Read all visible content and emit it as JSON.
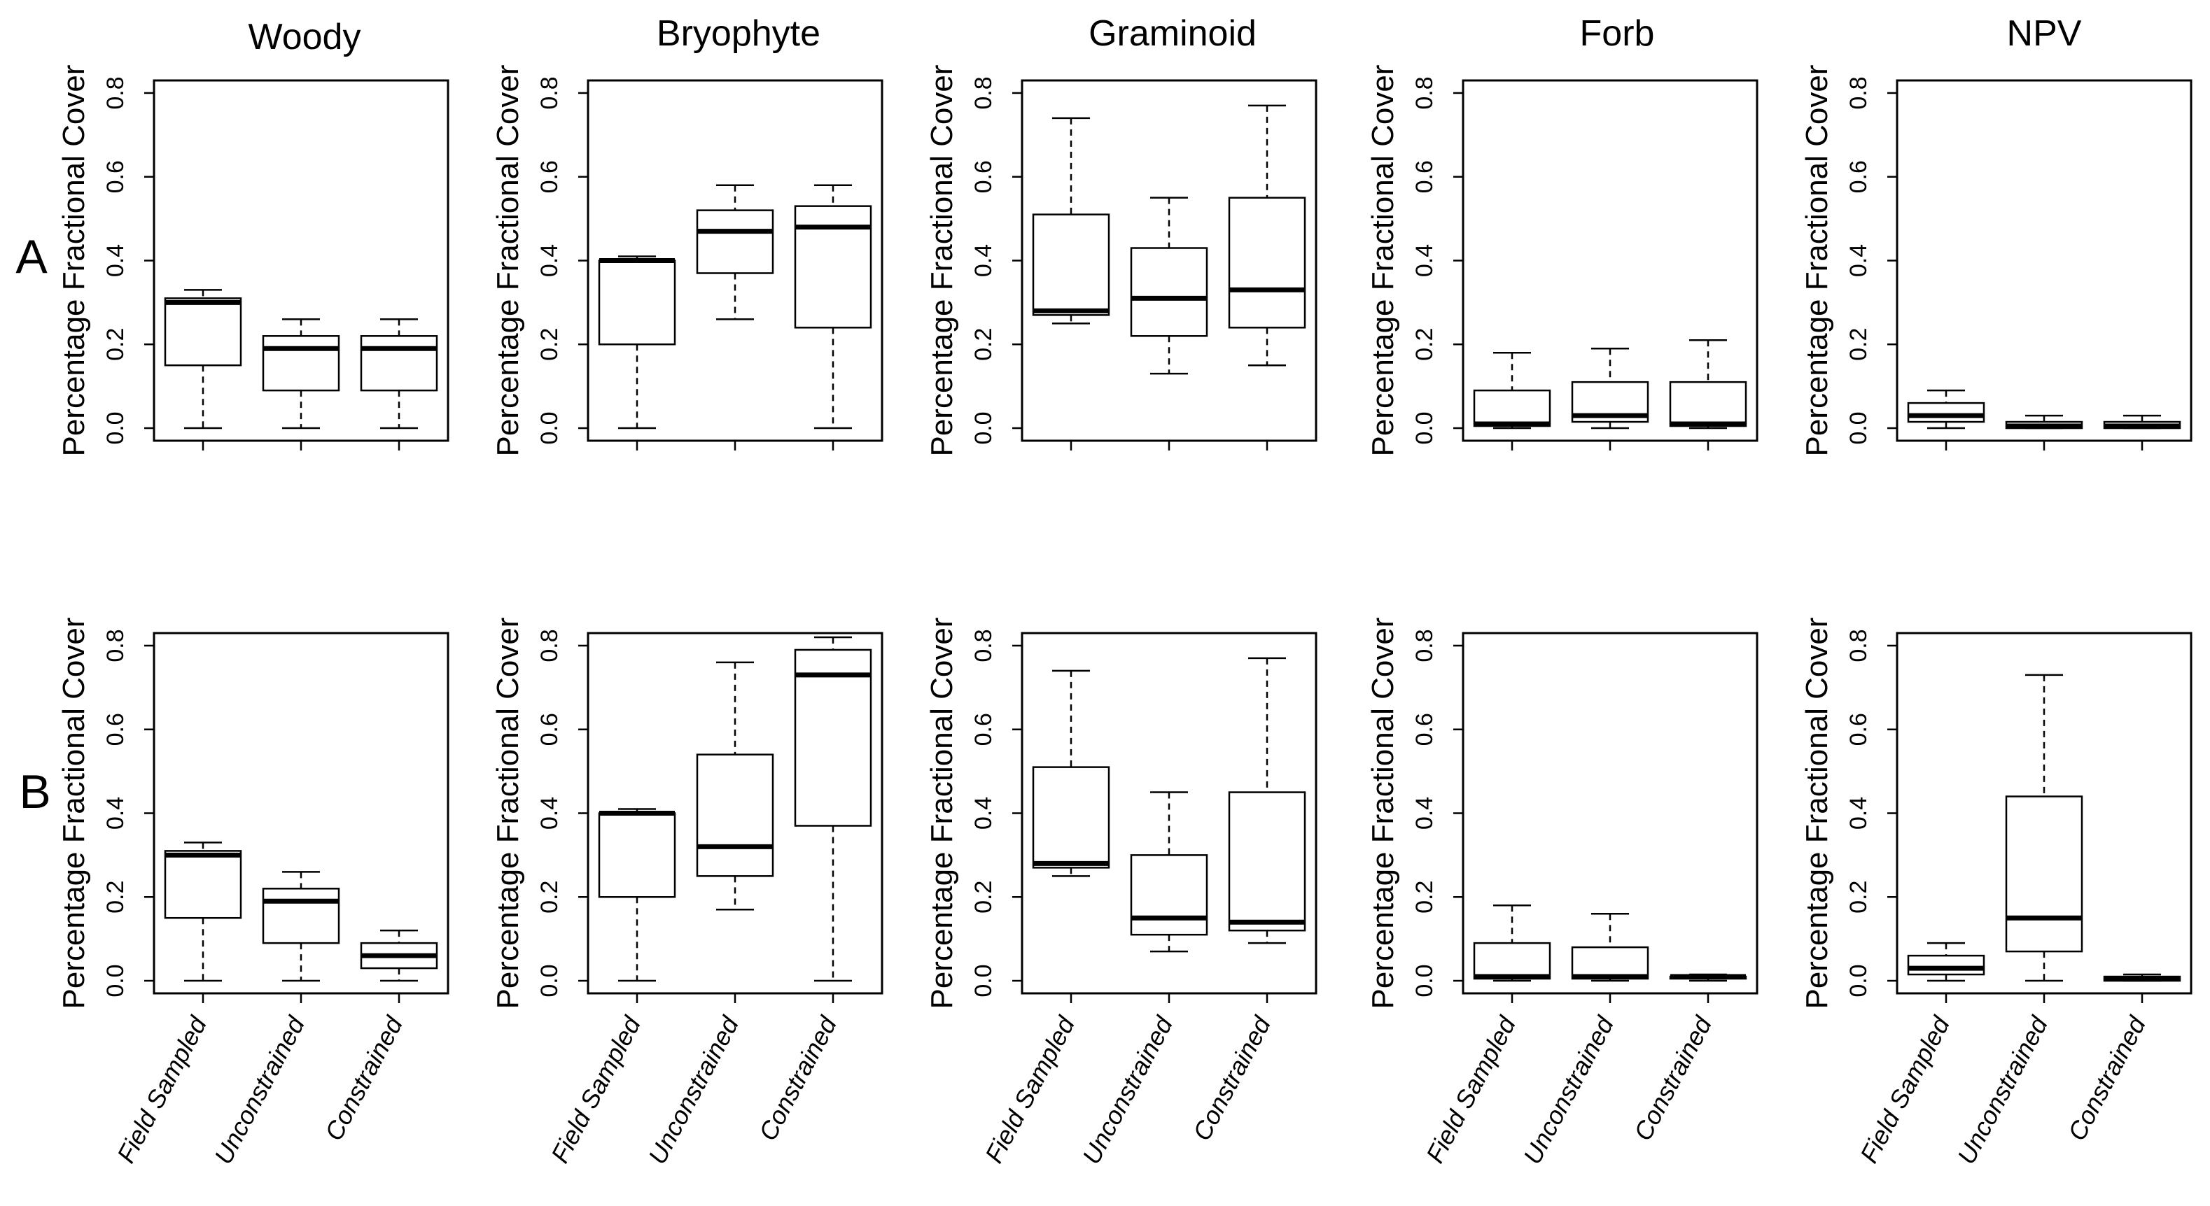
{
  "figure": {
    "columns": [
      "Woody",
      "Bryophyte",
      "Graminoid",
      "Forb",
      "NPV"
    ],
    "rows": [
      "A",
      "B"
    ],
    "ylabel": "Percentage Fractional Cover",
    "categories": [
      "Field Sampled",
      "Unconstrained",
      "Constrained"
    ],
    "yticks": [
      "0.0",
      "0.2",
      "0.4",
      "0.6",
      "0.8"
    ],
    "colors": {
      "line": "#000000",
      "background": "#ffffff"
    }
  },
  "chart_data": [
    {
      "type": "box",
      "row": "A",
      "title": "Woody",
      "ylabel": "Percentage Fractional Cover",
      "ylim": [
        -0.03,
        0.83
      ],
      "categories": [
        "Field Sampled",
        "Unconstrained",
        "Constrained"
      ],
      "boxes": [
        {
          "min": 0.0,
          "q1": 0.15,
          "median": 0.3,
          "q3": 0.31,
          "max": 0.33
        },
        {
          "min": 0.0,
          "q1": 0.09,
          "median": 0.19,
          "q3": 0.22,
          "max": 0.26
        },
        {
          "min": 0.0,
          "q1": 0.09,
          "median": 0.19,
          "q3": 0.22,
          "max": 0.26
        }
      ]
    },
    {
      "type": "box",
      "row": "A",
      "title": "Bryophyte",
      "ylabel": "Percentage Fractional Cover",
      "ylim": [
        -0.03,
        0.83
      ],
      "categories": [
        "Field Sampled",
        "Unconstrained",
        "Constrained"
      ],
      "boxes": [
        {
          "min": 0.0,
          "q1": 0.2,
          "median": 0.4,
          "q3": 0.4,
          "max": 0.41
        },
        {
          "min": 0.26,
          "q1": 0.37,
          "median": 0.47,
          "q3": 0.52,
          "max": 0.58
        },
        {
          "min": 0.0,
          "q1": 0.24,
          "median": 0.48,
          "q3": 0.53,
          "max": 0.58
        }
      ]
    },
    {
      "type": "box",
      "row": "A",
      "title": "Graminoid",
      "ylabel": "Percentage Fractional Cover",
      "ylim": [
        -0.03,
        0.83
      ],
      "categories": [
        "Field Sampled",
        "Unconstrained",
        "Constrained"
      ],
      "boxes": [
        {
          "min": 0.25,
          "q1": 0.27,
          "median": 0.28,
          "q3": 0.51,
          "max": 0.74
        },
        {
          "min": 0.13,
          "q1": 0.22,
          "median": 0.31,
          "q3": 0.43,
          "max": 0.55
        },
        {
          "min": 0.15,
          "q1": 0.24,
          "median": 0.33,
          "q3": 0.55,
          "max": 0.77
        }
      ]
    },
    {
      "type": "box",
      "row": "A",
      "title": "Forb",
      "ylabel": "Percentage Fractional Cover",
      "ylim": [
        -0.03,
        0.83
      ],
      "categories": [
        "Field Sampled",
        "Unconstrained",
        "Constrained"
      ],
      "boxes": [
        {
          "min": 0.0,
          "q1": 0.005,
          "median": 0.01,
          "q3": 0.09,
          "max": 0.18
        },
        {
          "min": 0.0,
          "q1": 0.015,
          "median": 0.03,
          "q3": 0.11,
          "max": 0.19
        },
        {
          "min": 0.0,
          "q1": 0.005,
          "median": 0.01,
          "q3": 0.11,
          "max": 0.21
        }
      ]
    },
    {
      "type": "box",
      "row": "A",
      "title": "NPV",
      "ylabel": "Percentage Fractional Cover",
      "ylim": [
        -0.03,
        0.83
      ],
      "categories": [
        "Field Sampled",
        "Unconstrained",
        "Constrained"
      ],
      "boxes": [
        {
          "min": 0.0,
          "q1": 0.015,
          "median": 0.03,
          "q3": 0.06,
          "max": 0.09
        },
        {
          "min": 0.0,
          "q1": 0.0,
          "median": 0.005,
          "q3": 0.015,
          "max": 0.03
        },
        {
          "min": 0.0,
          "q1": 0.0,
          "median": 0.005,
          "q3": 0.015,
          "max": 0.03
        }
      ]
    },
    {
      "type": "box",
      "row": "B",
      "title": "Woody",
      "ylabel": "Percentage Fractional Cover",
      "ylim": [
        -0.03,
        0.83
      ],
      "categories": [
        "Field Sampled",
        "Unconstrained",
        "Constrained"
      ],
      "boxes": [
        {
          "min": 0.0,
          "q1": 0.15,
          "median": 0.3,
          "q3": 0.31,
          "max": 0.33
        },
        {
          "min": 0.0,
          "q1": 0.09,
          "median": 0.19,
          "q3": 0.22,
          "max": 0.26
        },
        {
          "min": 0.0,
          "q1": 0.03,
          "median": 0.06,
          "q3": 0.09,
          "max": 0.12
        }
      ]
    },
    {
      "type": "box",
      "row": "B",
      "title": "Bryophyte",
      "ylabel": "Percentage Fractional Cover",
      "ylim": [
        -0.03,
        0.83
      ],
      "categories": [
        "Field Sampled",
        "Unconstrained",
        "Constrained"
      ],
      "boxes": [
        {
          "min": 0.0,
          "q1": 0.2,
          "median": 0.4,
          "q3": 0.4,
          "max": 0.41
        },
        {
          "min": 0.17,
          "q1": 0.25,
          "median": 0.32,
          "q3": 0.54,
          "max": 0.76
        },
        {
          "min": 0.0,
          "q1": 0.37,
          "median": 0.73,
          "q3": 0.79,
          "max": 0.82
        }
      ]
    },
    {
      "type": "box",
      "row": "B",
      "title": "Graminoid",
      "ylabel": "Percentage Fractional Cover",
      "ylim": [
        -0.03,
        0.83
      ],
      "categories": [
        "Field Sampled",
        "Unconstrained",
        "Constrained"
      ],
      "boxes": [
        {
          "min": 0.25,
          "q1": 0.27,
          "median": 0.28,
          "q3": 0.51,
          "max": 0.74
        },
        {
          "min": 0.07,
          "q1": 0.11,
          "median": 0.15,
          "q3": 0.3,
          "max": 0.45
        },
        {
          "min": 0.09,
          "q1": 0.12,
          "median": 0.14,
          "q3": 0.45,
          "max": 0.77
        }
      ]
    },
    {
      "type": "box",
      "row": "B",
      "title": "Forb",
      "ylabel": "Percentage Fractional Cover",
      "ylim": [
        -0.03,
        0.83
      ],
      "categories": [
        "Field Sampled",
        "Unconstrained",
        "Constrained"
      ],
      "boxes": [
        {
          "min": 0.0,
          "q1": 0.005,
          "median": 0.01,
          "q3": 0.09,
          "max": 0.18
        },
        {
          "min": 0.0,
          "q1": 0.005,
          "median": 0.01,
          "q3": 0.08,
          "max": 0.16
        },
        {
          "min": 0.0,
          "q1": 0.005,
          "median": 0.01,
          "q3": 0.01,
          "max": 0.015
        }
      ]
    },
    {
      "type": "box",
      "row": "B",
      "title": "NPV",
      "ylabel": "Percentage Fractional Cover",
      "ylim": [
        -0.03,
        0.83
      ],
      "categories": [
        "Field Sampled",
        "Unconstrained",
        "Constrained"
      ],
      "boxes": [
        {
          "min": 0.0,
          "q1": 0.015,
          "median": 0.03,
          "q3": 0.06,
          "max": 0.09
        },
        {
          "min": 0.0,
          "q1": 0.07,
          "median": 0.15,
          "q3": 0.44,
          "max": 0.73
        },
        {
          "min": 0.0,
          "q1": 0.0,
          "median": 0.005,
          "q3": 0.01,
          "max": 0.015
        }
      ]
    }
  ]
}
